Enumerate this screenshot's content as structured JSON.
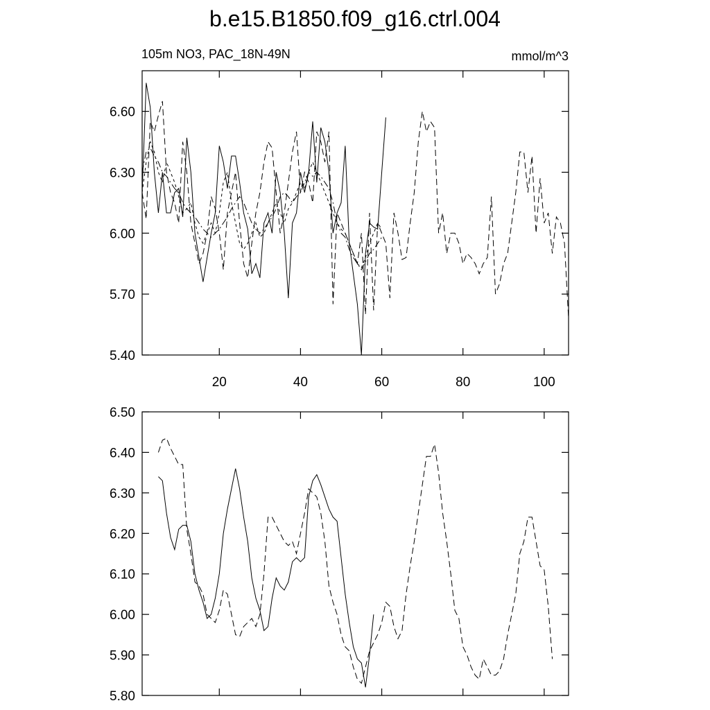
{
  "chart_data": [
    {
      "type": "line",
      "title": "b.e15.B1850.f09_g16.ctrl.004",
      "left_label": "105m NO3, PAC_18N-49N",
      "right_label": "mmol/m^3",
      "x": [
        1,
        2,
        3,
        4,
        5,
        6,
        7,
        8,
        9,
        10,
        11,
        12,
        13,
        14,
        15,
        16,
        17,
        18,
        19,
        20,
        21,
        22,
        23,
        24,
        25,
        26,
        27,
        28,
        29,
        30,
        31,
        32,
        33,
        34,
        35,
        36,
        37,
        38,
        39,
        40,
        41,
        42,
        43,
        44,
        45,
        46,
        47,
        48,
        49,
        50,
        51,
        52,
        53,
        54,
        55,
        56,
        57,
        58,
        59,
        60,
        61,
        62,
        63,
        64,
        65,
        66,
        67,
        68,
        69,
        70,
        71,
        72,
        73,
        74,
        75,
        76,
        77,
        78,
        79,
        80,
        81,
        82,
        83,
        84,
        85,
        86,
        87,
        88,
        89,
        90,
        91,
        92,
        93,
        94,
        95,
        96,
        97,
        98,
        99,
        100,
        101,
        102,
        103,
        104,
        105,
        106
      ],
      "xlim": [
        1,
        106
      ],
      "xticks": [
        20,
        40,
        60,
        80,
        100
      ],
      "xtick_labels": true,
      "ylim": [
        5.4,
        6.8
      ],
      "yticks": [
        {
          "value": 5.4,
          "label": "5.40"
        },
        {
          "value": 5.7,
          "label": "5.70"
        },
        {
          "value": 6.0,
          "label": "6.00"
        },
        {
          "value": 6.3,
          "label": "6.30"
        },
        {
          "value": 6.6,
          "label": "6.60"
        }
      ],
      "series": [
        {
          "color": "#000000",
          "dash": "solid",
          "values": [
            6.2,
            6.74,
            6.62,
            6.3,
            6.1,
            6.3,
            6.1,
            6.1,
            6.2,
            6.22,
            6.08,
            6.47,
            6.3,
            6.0,
            5.88,
            5.76,
            5.88,
            6.0,
            6.1,
            6.43,
            6.35,
            6.22,
            6.38,
            6.38,
            6.25,
            6.1,
            6.02,
            5.8,
            5.85,
            5.78,
            6.05,
            6.1,
            6.0,
            6.3,
            6.2,
            6.0,
            5.68,
            6.05,
            6.1,
            6.3,
            6.2,
            6.3,
            6.55,
            6.25,
            6.52,
            6.45,
            6.3,
            6.0,
            6.1,
            6.15,
            6.43,
            5.95,
            5.8,
            5.65,
            5.4,
            5.9,
            6.05,
            6.03,
            6.02,
            6.3,
            6.57,
            null,
            null,
            null,
            null,
            null,
            null,
            null,
            null,
            null,
            null,
            null,
            null,
            null,
            null,
            null,
            null,
            null,
            null,
            null,
            null,
            null,
            null,
            null,
            null,
            null,
            null,
            null,
            null,
            null,
            null,
            null,
            null,
            null,
            null,
            null,
            null,
            null,
            null,
            null,
            null,
            null,
            null,
            null,
            null,
            null
          ]
        },
        {
          "color": "#000000",
          "dash": "dash",
          "values": [
            6.2,
            6.07,
            6.55,
            6.5,
            6.58,
            6.65,
            6.3,
            6.2,
            6.15,
            6.05,
            6.45,
            6.3,
            6.05,
            5.95,
            5.85,
            5.9,
            6.0,
            6.18,
            6.12,
            6.0,
            5.82,
            6.1,
            6.2,
            6.3,
            6.05,
            5.85,
            5.78,
            5.95,
            6.1,
            6.2,
            6.35,
            6.45,
            6.42,
            6.2,
            6.0,
            6.1,
            6.25,
            6.4,
            6.5,
            6.2,
            6.3,
            6.25,
            6.15,
            6.5,
            6.45,
            6.35,
            6.5,
            5.65,
            6.1,
            6.05,
            6.0,
            5.95,
            5.9,
            5.85,
            6.0,
            5.6,
            6.1,
            5.62,
            6.05,
            6.0,
            5.95,
            5.68,
            6.1,
            6.0,
            5.87,
            5.88,
            6.05,
            6.2,
            6.45,
            6.6,
            6.5,
            6.55,
            6.52,
            6.0,
            6.1,
            5.9,
            6.0,
            6.0,
            5.95,
            5.85,
            5.9,
            5.88,
            5.85,
            5.8,
            5.85,
            5.88,
            6.18,
            5.7,
            5.75,
            5.85,
            5.9,
            6.05,
            6.2,
            6.4,
            6.4,
            6.2,
            6.38,
            6.0,
            6.27,
            6.05,
            6.1,
            5.9,
            6.08,
            6.05,
            5.95,
            5.58
          ]
        },
        {
          "color": "#000000",
          "dash": "dashdot",
          "values": [
            6.3,
            6.4,
            6.42,
            6.38,
            6.35,
            6.3,
            6.28,
            6.25,
            6.22,
            6.2,
            6.15,
            6.12,
            6.1,
            6.08,
            6.05,
            6.02,
            6.0,
            5.98,
            6.0,
            6.02,
            6.05,
            6.08,
            6.12,
            6.15,
            6.18,
            6.15,
            6.1,
            6.05,
            6.02,
            6.0,
            6.02,
            6.05,
            6.08,
            6.12,
            6.18,
            6.2,
            6.18,
            6.15,
            6.18,
            6.2,
            6.25,
            6.3,
            6.28,
            6.3,
            6.28,
            6.25,
            6.22,
            6.15,
            6.05,
            6.0,
            5.98,
            5.92,
            5.88,
            5.85,
            5.82,
            5.86,
            5.9,
            5.92,
            5.95,
            5.98,
            null,
            null,
            null,
            null,
            null,
            null,
            null,
            null,
            null,
            null,
            null,
            null,
            null,
            null,
            null,
            null,
            null,
            null,
            null,
            null,
            null,
            null,
            null,
            null,
            null,
            null,
            null,
            null,
            null,
            null,
            null,
            null,
            null,
            null,
            null,
            null,
            null,
            null,
            null,
            null,
            null,
            null,
            null,
            null,
            null,
            null
          ]
        },
        {
          "color": "#000000",
          "dash": "shortdash",
          "values": [
            6.2,
            6.35,
            6.45,
            6.4,
            6.3,
            6.25,
            6.35,
            6.3,
            6.25,
            6.18,
            6.1,
            6.12,
            6.15,
            6.05,
            5.98,
            5.95,
            6.0,
            6.05,
            6.0,
            6.1,
            6.25,
            6.3,
            6.15,
            6.05,
            5.95,
            5.92,
            5.95,
            6.0,
            6.05,
            5.98,
            6.0,
            6.05,
            6.1,
            6.15,
            6.1,
            6.05,
            6.12,
            6.15,
            6.2,
            6.25,
            6.22,
            6.3,
            6.35,
            6.3,
            6.25,
            6.2,
            6.15,
            6.1,
            6.05,
            6.02,
            6.0,
            5.95,
            5.9,
            5.85,
            5.83,
            5.88,
            5.95,
            6.0,
            6.05,
            6.02,
            null,
            null,
            null,
            null,
            null,
            null,
            null,
            null,
            null,
            null,
            null,
            null,
            null,
            null,
            null,
            null,
            null,
            null,
            null,
            null,
            null,
            null,
            null,
            null,
            null,
            null,
            null,
            null,
            null,
            null,
            null,
            null,
            null,
            null,
            null,
            null,
            null,
            null,
            null,
            null,
            null,
            null,
            null,
            null,
            null,
            null
          ]
        }
      ]
    },
    {
      "type": "line",
      "x": [
        5,
        6,
        7,
        8,
        9,
        10,
        11,
        12,
        13,
        14,
        15,
        16,
        17,
        18,
        19,
        20,
        21,
        22,
        23,
        24,
        25,
        26,
        27,
        28,
        29,
        30,
        31,
        32,
        33,
        34,
        35,
        36,
        37,
        38,
        39,
        40,
        41,
        42,
        43,
        44,
        45,
        46,
        47,
        48,
        49,
        50,
        51,
        52,
        53,
        54,
        55,
        56,
        57,
        58,
        59,
        60,
        61,
        62,
        63,
        64,
        65,
        66,
        67,
        68,
        69,
        70,
        71,
        72,
        73,
        74,
        75,
        76,
        77,
        78,
        79,
        80,
        81,
        82,
        83,
        84,
        85,
        86,
        87,
        88,
        89,
        90,
        91,
        92,
        93,
        94,
        95,
        96,
        97,
        98,
        99,
        100,
        101,
        102
      ],
      "xlim": [
        1,
        106
      ],
      "xticks": [
        20,
        40,
        60,
        80,
        100
      ],
      "xtick_labels": false,
      "ylim": [
        5.8,
        6.5
      ],
      "yticks": [
        {
          "value": 5.8,
          "label": "5.80"
        },
        {
          "value": 5.9,
          "label": "5.90"
        },
        {
          "value": 6.0,
          "label": "6.00"
        },
        {
          "value": 6.1,
          "label": "6.10"
        },
        {
          "value": 6.2,
          "label": "6.20"
        },
        {
          "value": 6.3,
          "label": "6.30"
        },
        {
          "value": 6.4,
          "label": "6.40"
        },
        {
          "value": 6.5,
          "label": "6.50"
        }
      ],
      "series": [
        {
          "color": "#000000",
          "dash": "solid",
          "values": [
            6.34,
            6.33,
            6.25,
            6.19,
            6.16,
            6.21,
            6.22,
            6.22,
            6.18,
            6.1,
            6.06,
            6.03,
            5.99,
            6.0,
            6.04,
            6.1,
            6.2,
            6.26,
            6.31,
            6.36,
            6.31,
            6.24,
            6.18,
            6.09,
            6.04,
            6.01,
            5.96,
            5.97,
            6.04,
            6.09,
            6.07,
            6.06,
            6.08,
            6.13,
            6.14,
            6.13,
            6.14,
            6.29,
            6.33,
            6.345,
            6.32,
            6.29,
            6.26,
            6.24,
            6.23,
            6.14,
            6.05,
            5.98,
            5.92,
            5.89,
            5.88,
            5.82,
            5.9,
            6.0,
            null,
            null,
            null,
            null,
            null,
            null,
            null,
            null,
            null,
            null,
            null,
            null,
            null,
            null,
            null,
            null,
            null,
            null,
            null,
            null,
            null,
            null,
            null,
            null,
            null,
            null,
            null,
            null,
            null,
            null,
            null,
            null,
            null,
            null,
            null,
            null,
            null,
            null,
            null,
            null,
            null,
            null,
            null,
            null
          ]
        },
        {
          "color": "#000000",
          "dash": "dash",
          "values": [
            6.4,
            6.43,
            6.435,
            6.41,
            6.39,
            6.37,
            6.37,
            6.21,
            6.15,
            6.08,
            6.07,
            6.05,
            6.0,
            5.99,
            5.98,
            6.01,
            6.06,
            6.05,
            6.0,
            5.95,
            5.945,
            5.97,
            5.98,
            5.99,
            5.97,
            6.0,
            6.1,
            6.24,
            6.24,
            6.22,
            6.2,
            6.18,
            6.17,
            6.18,
            6.15,
            6.2,
            6.25,
            6.31,
            6.3,
            6.29,
            6.25,
            6.18,
            6.07,
            6.03,
            6.0,
            5.95,
            5.92,
            5.91,
            5.87,
            5.84,
            5.83,
            5.87,
            5.91,
            5.93,
            5.95,
            5.98,
            6.03,
            6.02,
            5.97,
            5.94,
            5.96,
            6.05,
            6.12,
            6.18,
            6.25,
            6.32,
            6.39,
            6.39,
            6.42,
            6.35,
            6.25,
            6.18,
            6.1,
            6.01,
            5.99,
            5.92,
            5.9,
            5.87,
            5.85,
            5.84,
            5.89,
            5.87,
            5.85,
            5.85,
            5.86,
            5.89,
            5.95,
            6.0,
            6.05,
            6.15,
            6.18,
            6.24,
            6.24,
            6.18,
            6.12,
            6.11,
            6.02,
            5.89
          ]
        }
      ]
    }
  ]
}
